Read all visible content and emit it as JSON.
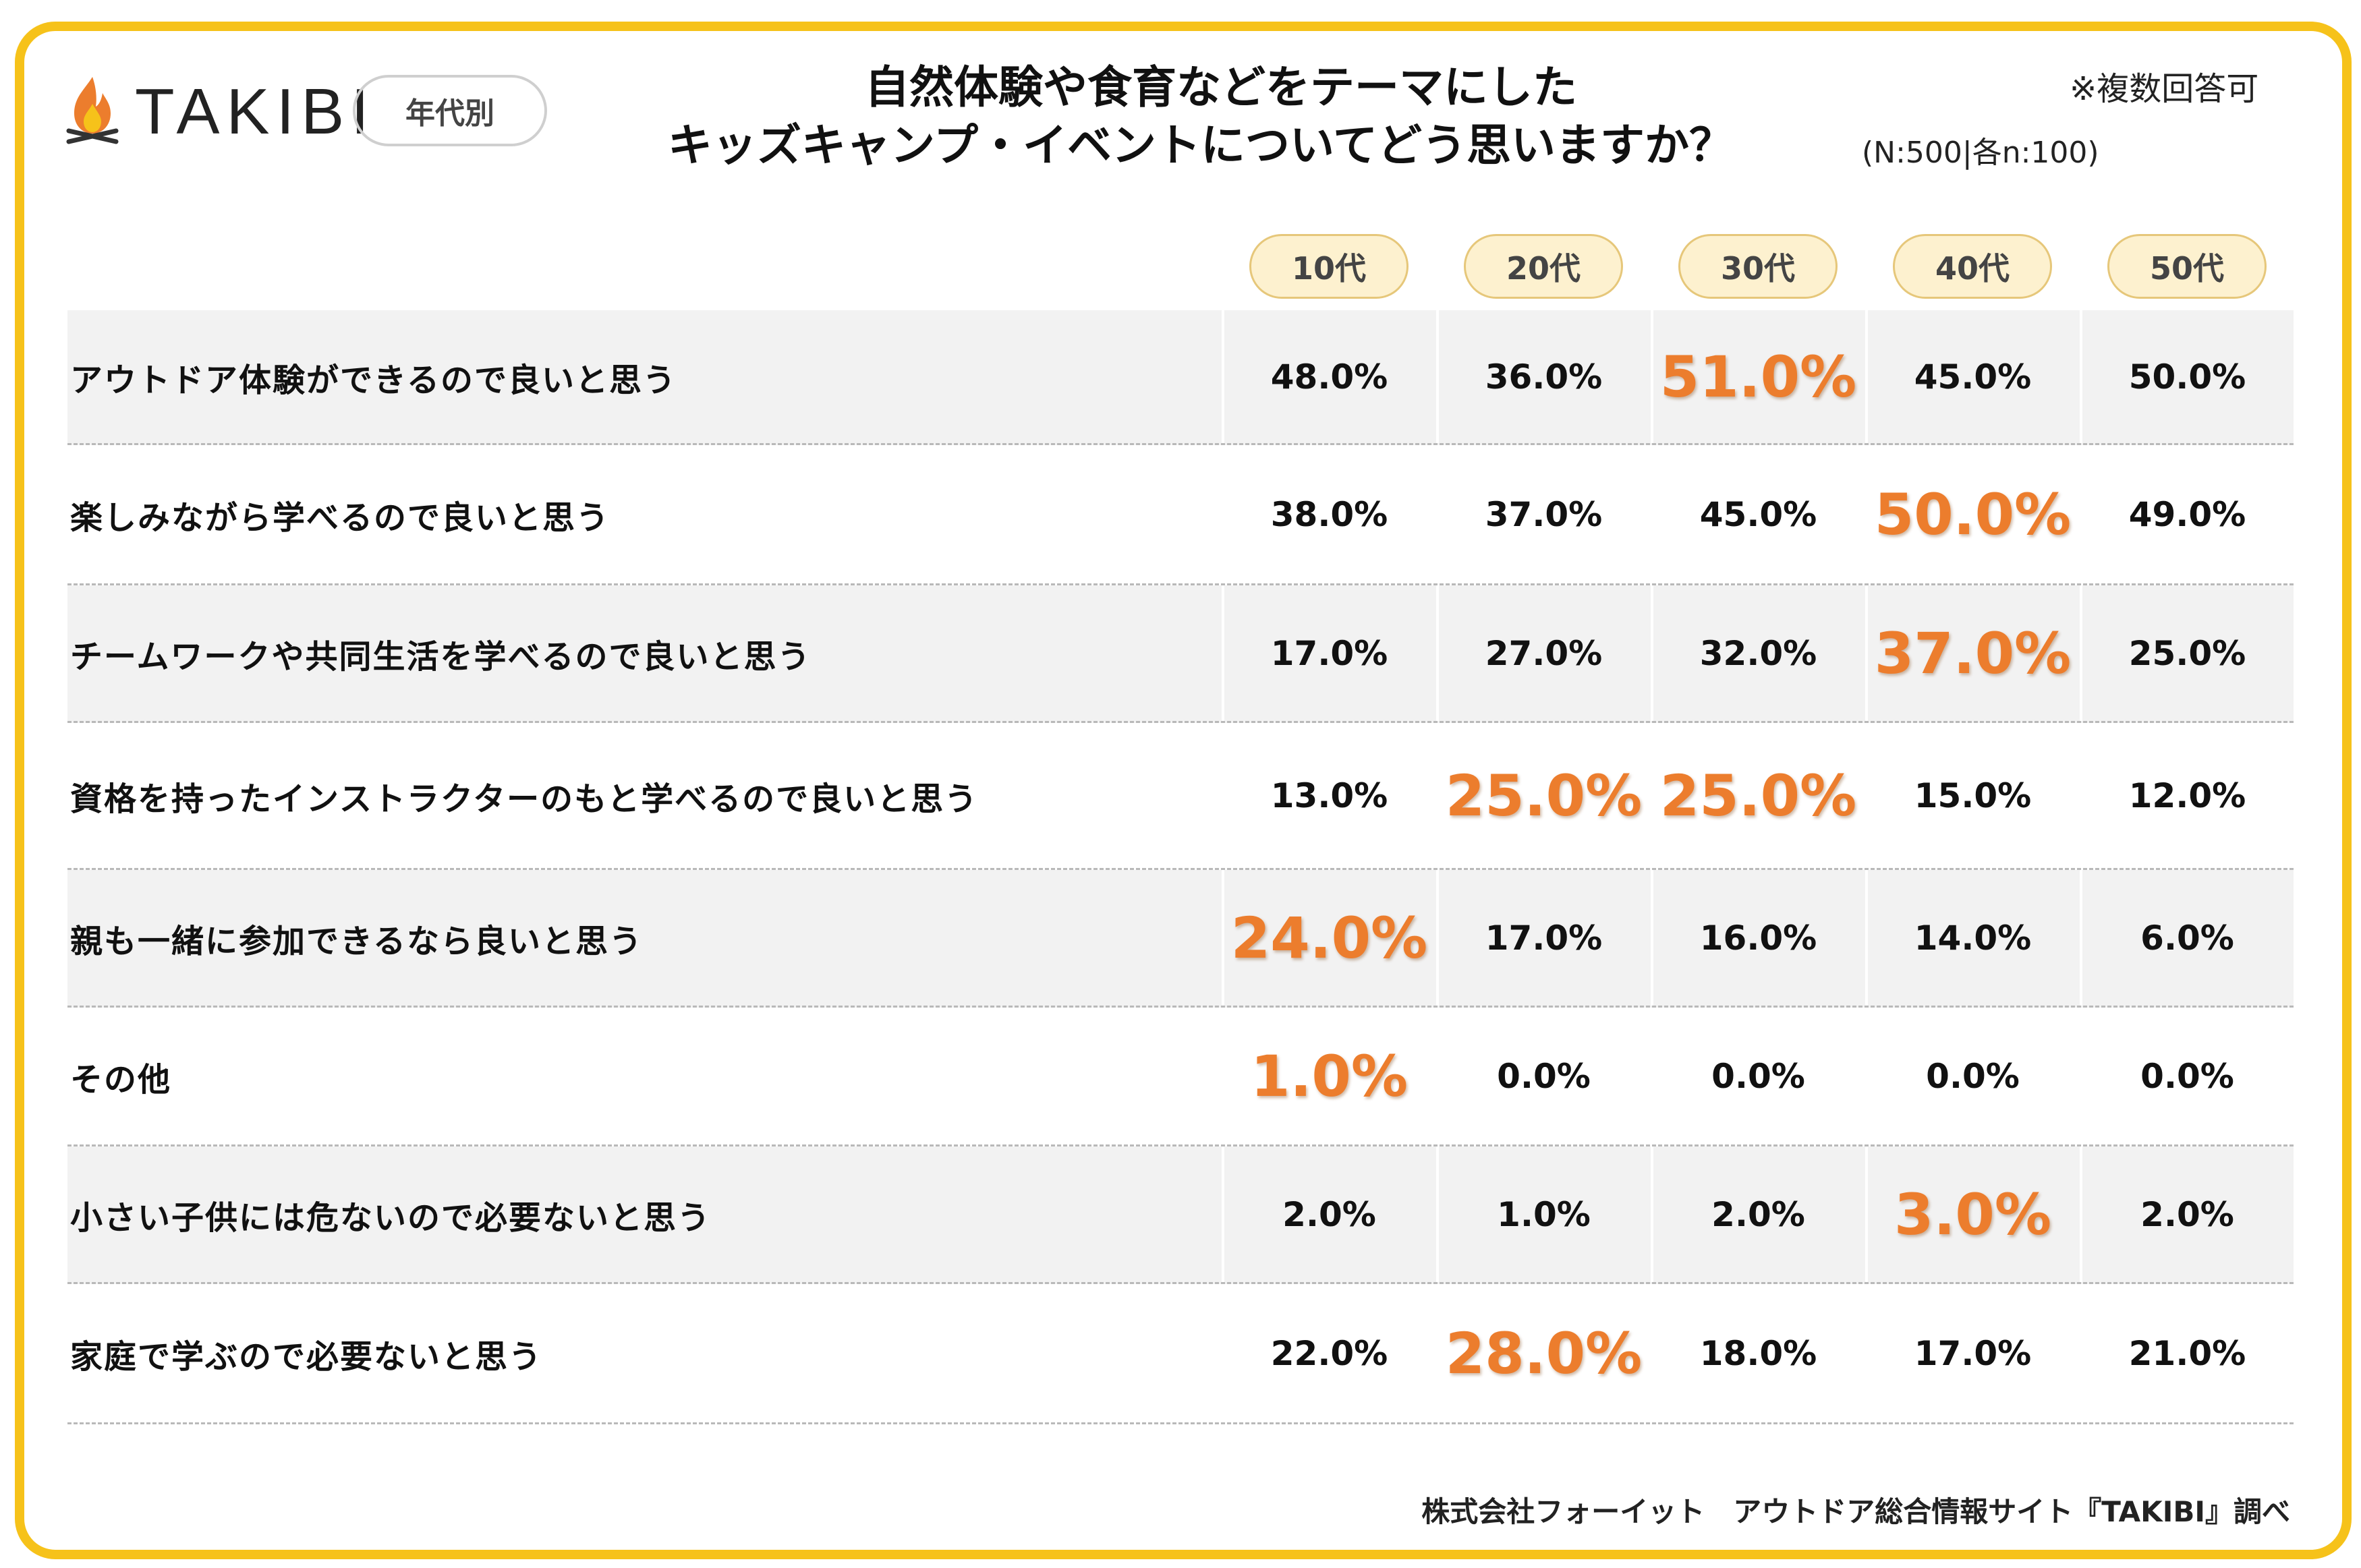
{
  "logo": {
    "text": "TAKIBI",
    "icon": "campfire-icon"
  },
  "segment_label": "年代別",
  "multi_answer_note": "※複数回答可",
  "sample_note": "(N:500|各n:100)",
  "footer": "株式会社フォーイット　アウトドア総合情報サイト『TAKIBI』調べ",
  "colors": {
    "frame": "#f6c21a",
    "highlight": "#ec7d2d",
    "header_pill": "#fdf1cf",
    "row_shade": "#f2f2f2"
  },
  "chart_data": {
    "type": "table",
    "title_lines": [
      "自然体験や食育などをテーマにした",
      "キッズキャンプ・イベントについてどう思いますか？"
    ],
    "columns": [
      "10代",
      "20代",
      "30代",
      "40代",
      "50代"
    ],
    "unit": "%",
    "rows": [
      {
        "label": "アウトドア体験ができるので良いと思う",
        "values": [
          "48.0%",
          "36.0%",
          "51.0%",
          "45.0%",
          "50.0%"
        ],
        "highlight": [
          2
        ]
      },
      {
        "label": "楽しみながら学べるので良いと思う",
        "values": [
          "38.0%",
          "37.0%",
          "45.0%",
          "50.0%",
          "49.0%"
        ],
        "highlight": [
          3
        ]
      },
      {
        "label": "チームワークや共同生活を学べるので良いと思う",
        "values": [
          "17.0%",
          "27.0%",
          "32.0%",
          "37.0%",
          "25.0%"
        ],
        "highlight": [
          3
        ]
      },
      {
        "label": "資格を持ったインストラクターのもと学べるので良いと思う",
        "values": [
          "13.0%",
          "25.0%",
          "25.0%",
          "15.0%",
          "12.0%"
        ],
        "highlight": [
          1,
          2
        ]
      },
      {
        "label": "親も一緒に参加できるなら良いと思う",
        "values": [
          "24.0%",
          "17.0%",
          "16.0%",
          "14.0%",
          "6.0%"
        ],
        "highlight": [
          0
        ]
      },
      {
        "label": "その他",
        "values": [
          "1.0%",
          "0.0%",
          "0.0%",
          "0.0%",
          "0.0%"
        ],
        "highlight": [
          0
        ]
      },
      {
        "label": "小さい子供には危ないので必要ないと思う",
        "values": [
          "2.0%",
          "1.0%",
          "2.0%",
          "3.0%",
          "2.0%"
        ],
        "highlight": [
          3
        ]
      },
      {
        "label": "家庭で学ぶので必要ないと思う",
        "values": [
          "22.0%",
          "28.0%",
          "18.0%",
          "17.0%",
          "21.0%"
        ],
        "highlight": [
          1
        ]
      }
    ]
  }
}
